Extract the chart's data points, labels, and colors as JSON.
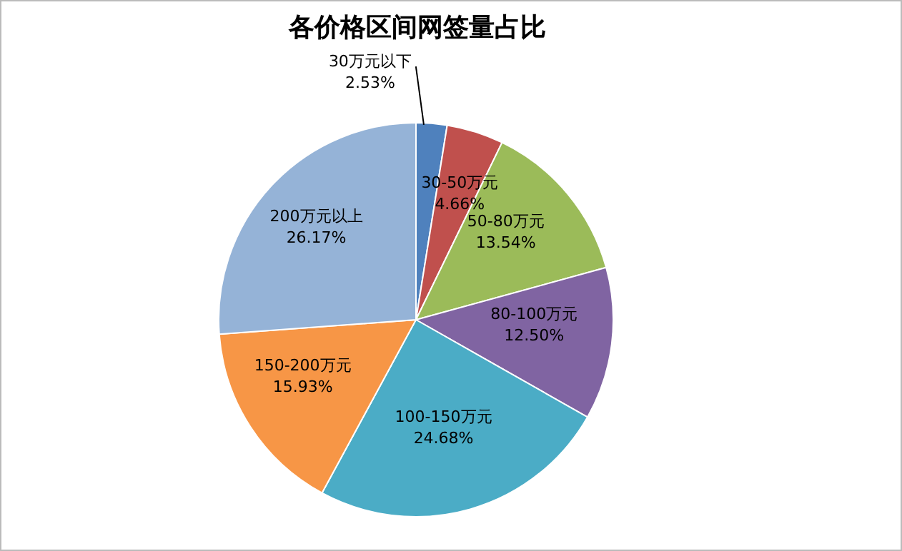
{
  "chart_data": {
    "type": "pie",
    "title": "各价格区间网签量占比",
    "categories": [
      "30万元以下",
      "30-50万元",
      "50-80万元",
      "80-100万元",
      "100-150万元",
      "150-200万元",
      "200万元以上"
    ],
    "values": [
      2.53,
      4.66,
      13.54,
      12.5,
      24.68,
      15.93,
      26.17
    ],
    "colors": [
      "#4f81bd",
      "#c0504d",
      "#9bbb59",
      "#8064a2",
      "#4bacc6",
      "#f79646",
      "#95b3d7"
    ],
    "value_labels": [
      "2.53%",
      "4.66%",
      "13.54%",
      "12.50%",
      "24.68%",
      "15.93%",
      "26.17%"
    ],
    "legend": false
  }
}
